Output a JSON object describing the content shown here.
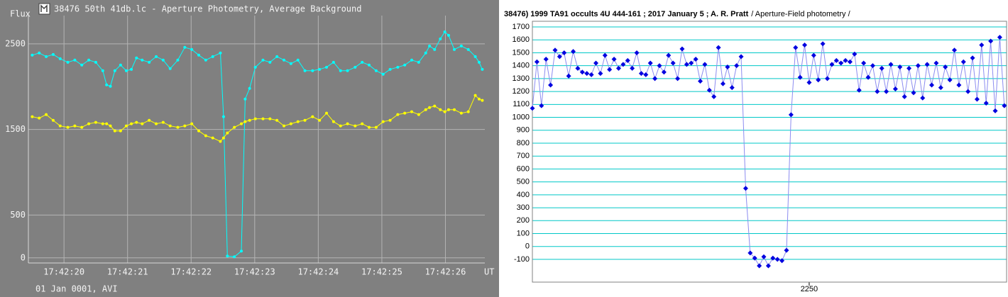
{
  "chart_data": [
    {
      "type": "line",
      "title": "38476 50th 41db.lc - Aperture Photometry, Average Background",
      "ylabel": "Flux",
      "xlabel": "UT",
      "footer": "01 Jan 0001, AVI",
      "background": "#808080",
      "grid": true,
      "grid_color": "#b4b4b4",
      "marker": "circle",
      "xlim": [
        19.44,
        26.62
      ],
      "ylim": [
        -60,
        2830
      ],
      "xticks": [
        {
          "value": 20,
          "label": "17:42:20"
        },
        {
          "value": 21,
          "label": "17:42:21"
        },
        {
          "value": 22,
          "label": "17:42:22"
        },
        {
          "value": 23,
          "label": "17:42:23"
        },
        {
          "value": 24,
          "label": "17:42:24"
        },
        {
          "value": 25,
          "label": "17:42:25"
        },
        {
          "value": 26,
          "label": "17:42:26"
        }
      ],
      "yticks": [
        0,
        500,
        1500,
        2500
      ],
      "x": [
        19.5,
        19.61,
        19.72,
        19.83,
        19.94,
        20.06,
        20.17,
        20.28,
        20.39,
        20.5,
        20.61,
        20.67,
        20.73,
        20.8,
        20.89,
        20.98,
        21.06,
        21.14,
        21.23,
        21.34,
        21.45,
        21.56,
        21.67,
        21.79,
        21.9,
        22.01,
        22.12,
        22.23,
        22.34,
        22.46,
        22.51,
        22.57,
        22.68,
        22.79,
        22.85,
        22.92,
        23.01,
        23.13,
        23.24,
        23.35,
        23.46,
        23.57,
        23.68,
        23.79,
        23.91,
        24.02,
        24.13,
        24.24,
        24.35,
        24.46,
        24.58,
        24.69,
        24.8,
        24.91,
        25.02,
        25.13,
        25.25,
        25.36,
        25.47,
        25.58,
        25.69,
        25.75,
        25.83,
        25.92,
        25.99,
        26.05,
        26.14,
        26.25,
        26.36,
        26.47,
        26.53,
        26.58
      ],
      "series": [
        {
          "color": "#00ffff",
          "values": [
            2368,
            2393,
            2351,
            2376,
            2326,
            2285,
            2310,
            2252,
            2310,
            2285,
            2186,
            2021,
            2004,
            2186,
            2252,
            2186,
            2202,
            2335,
            2310,
            2285,
            2351,
            2310,
            2211,
            2310,
            2459,
            2434,
            2368,
            2310,
            2351,
            2393,
            1649,
            21,
            12,
            79,
            1855,
            1979,
            2227,
            2310,
            2285,
            2351,
            2310,
            2269,
            2310,
            2186,
            2186,
            2202,
            2227,
            2285,
            2186,
            2186,
            2227,
            2285,
            2252,
            2186,
            2145,
            2202,
            2227,
            2252,
            2310,
            2285,
            2393,
            2475,
            2434,
            2558,
            2640,
            2599,
            2434,
            2475,
            2434,
            2351,
            2285,
            2202
          ]
        },
        {
          "color": "#ffff00",
          "values": [
            1649,
            1632,
            1674,
            1607,
            1541,
            1525,
            1541,
            1525,
            1566,
            1583,
            1566,
            1566,
            1541,
            1483,
            1483,
            1541,
            1566,
            1583,
            1566,
            1607,
            1566,
            1583,
            1541,
            1525,
            1541,
            1566,
            1483,
            1426,
            1401,
            1360,
            1401,
            1459,
            1525,
            1566,
            1591,
            1607,
            1624,
            1624,
            1624,
            1607,
            1541,
            1566,
            1591,
            1607,
            1649,
            1607,
            1690,
            1591,
            1541,
            1566,
            1541,
            1566,
            1525,
            1525,
            1591,
            1607,
            1674,
            1690,
            1707,
            1674,
            1731,
            1756,
            1773,
            1731,
            1707,
            1731,
            1731,
            1690,
            1707,
            1897,
            1855,
            1839
          ]
        }
      ]
    },
    {
      "type": "line",
      "title": "38476) 1999 TA91 occults 4U 444-161 ; 2017 January 5 ; A. R. Pratt",
      "subtitle": "/ Aperture-Field photometry /",
      "background": "#ffffff",
      "grid": true,
      "grid_color": "#00c8c8",
      "marker": "diamond",
      "xlim": [
        2128,
        2337
      ],
      "ylim": [
        -276,
        1744
      ],
      "xticks": [
        2250
      ],
      "yticks": [
        -100,
        0,
        100,
        200,
        300,
        400,
        500,
        600,
        700,
        800,
        900,
        1000,
        1100,
        1200,
        1300,
        1400,
        1500,
        1600,
        1700
      ],
      "x": [
        2128,
        2130,
        2132,
        2134,
        2136,
        2138,
        2140,
        2142,
        2144,
        2146,
        2148,
        2150,
        2152,
        2154,
        2156,
        2158,
        2160,
        2162,
        2164,
        2166,
        2168,
        2170,
        2172,
        2174,
        2176,
        2178,
        2180,
        2182,
        2184,
        2186,
        2188,
        2190,
        2192,
        2194,
        2196,
        2198,
        2200,
        2202,
        2204,
        2206,
        2208,
        2210,
        2212,
        2214,
        2216,
        2218,
        2220,
        2222,
        2224,
        2226,
        2228,
        2230,
        2232,
        2234,
        2236,
        2238,
        2240,
        2242,
        2244,
        2246,
        2248,
        2250,
        2252,
        2254,
        2256,
        2258,
        2260,
        2262,
        2264,
        2266,
        2268,
        2270,
        2272,
        2274,
        2276,
        2278,
        2280,
        2282,
        2284,
        2286,
        2288,
        2290,
        2292,
        2294,
        2296,
        2298,
        2300,
        2302,
        2304,
        2306,
        2308,
        2310,
        2312,
        2314,
        2316,
        2318,
        2320,
        2322,
        2324,
        2326,
        2328,
        2330,
        2332,
        2334,
        2336
      ],
      "series": [
        {
          "color": "#0000e0",
          "line_color": "#8c8cf0",
          "values": [
            1070,
            1430,
            1090,
            1450,
            1250,
            1520,
            1470,
            1500,
            1320,
            1510,
            1380,
            1350,
            1340,
            1330,
            1420,
            1340,
            1480,
            1370,
            1450,
            1380,
            1410,
            1440,
            1380,
            1500,
            1340,
            1330,
            1420,
            1300,
            1400,
            1350,
            1480,
            1420,
            1300,
            1530,
            1410,
            1420,
            1450,
            1280,
            1410,
            1210,
            1160,
            1540,
            1260,
            1390,
            1230,
            1400,
            1470,
            450,
            -50,
            -90,
            -150,
            -80,
            -150,
            -90,
            -100,
            -110,
            -30,
            1020,
            1540,
            1310,
            1560,
            1270,
            1480,
            1290,
            1570,
            1300,
            1410,
            1440,
            1420,
            1440,
            1430,
            1490,
            1210,
            1420,
            1310,
            1400,
            1200,
            1380,
            1200,
            1410,
            1220,
            1390,
            1160,
            1380,
            1190,
            1400,
            1150,
            1410,
            1250,
            1420,
            1230,
            1390,
            1290,
            1520,
            1250,
            1430,
            1200,
            1460,
            1140,
            1560,
            1110,
            1590,
            1050,
            1620,
            1090
          ]
        }
      ]
    }
  ]
}
